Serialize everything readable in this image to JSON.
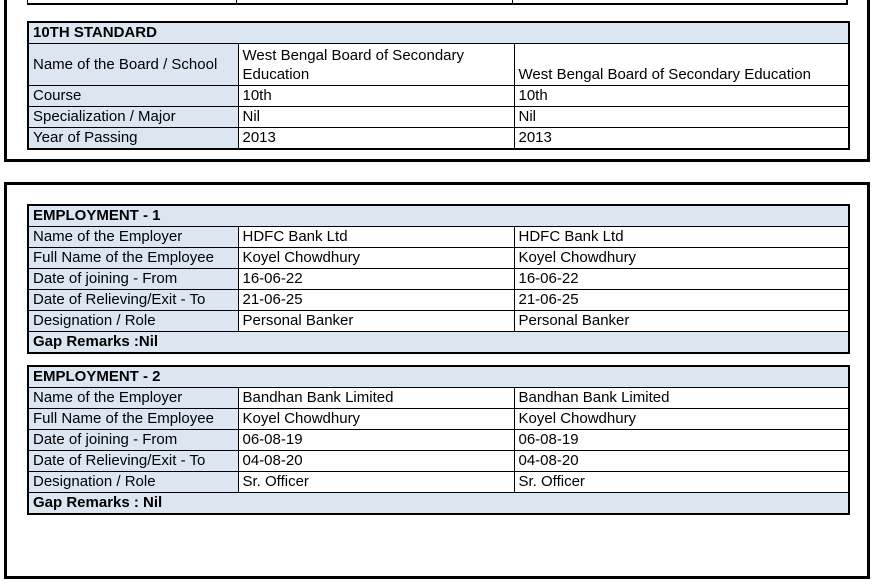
{
  "colors": {
    "header_fill": "#dce6f1",
    "border": "#000000"
  },
  "tenth_standard": {
    "title": "10TH STANDARD",
    "rows": [
      {
        "label": "Name of the Board / School",
        "value1": "West Bengal Board of Secondary Education",
        "value2": "West Bengal Board of Secondary Education"
      },
      {
        "label": "Course",
        "value1": "10th",
        "value2": "10th"
      },
      {
        "label": "Specialization / Major",
        "value1": "Nil",
        "value2": "Nil"
      },
      {
        "label": "Year of Passing",
        "value1": "2013",
        "value2": "2013"
      }
    ]
  },
  "employment1": {
    "title": "EMPLOYMENT - 1",
    "rows": [
      {
        "label": "Name of the Employer",
        "value1": "HDFC Bank Ltd",
        "value2": "HDFC Bank Ltd"
      },
      {
        "label": "Full Name of the Employee",
        "value1": "Koyel Chowdhury",
        "value2": "Koyel Chowdhury"
      },
      {
        "label": "Date of joining - From",
        "value1": "16-06-22",
        "value2": "16-06-22"
      },
      {
        "label": "Date of Relieving/Exit - To",
        "value1": "21-06-25",
        "value2": "21-06-25"
      },
      {
        "label": "Designation / Role",
        "value1": "Personal Banker",
        "value2": "Personal Banker"
      }
    ],
    "gap_remarks": "Gap Remarks :Nil"
  },
  "employment2": {
    "title": "EMPLOYMENT - 2",
    "rows": [
      {
        "label": "Name of the Employer",
        "value1": "Bandhan Bank Limited",
        "value2": "Bandhan Bank Limited"
      },
      {
        "label": "Full Name of the Employee",
        "value1": "Koyel Chowdhury",
        "value2": "Koyel Chowdhury"
      },
      {
        "label": "Date of joining - From",
        "value1": "06-08-19",
        "value2": "06-08-19"
      },
      {
        "label": "Date of Relieving/Exit - To",
        "value1": "04-08-20",
        "value2": "04-08-20"
      },
      {
        "label": "Designation / Role",
        "value1": "Sr. Officer",
        "value2": "Sr. Officer"
      }
    ],
    "gap_remarks": "Gap Remarks : Nil"
  }
}
